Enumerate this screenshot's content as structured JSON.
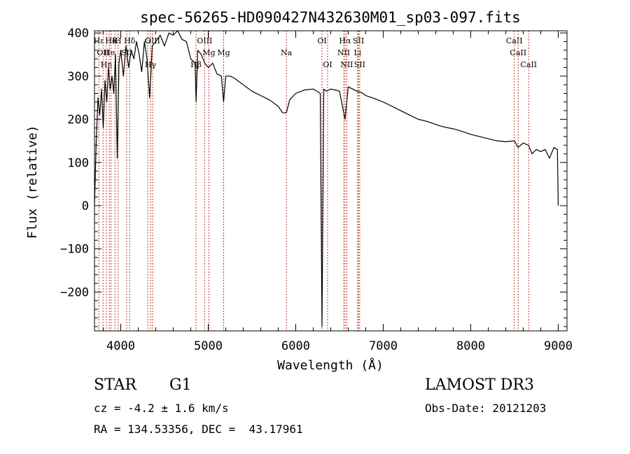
{
  "chart_data": {
    "type": "line",
    "title": "spec-56265-HD090427N432630M01_sp03-097.fits",
    "xlabel": "Wavelength (Å)",
    "ylabel": "Flux (relative)",
    "xlim": [
      3700,
      9100
    ],
    "ylim": [
      -290,
      405
    ],
    "x_ticks": [
      4000,
      5000,
      6000,
      7000,
      8000,
      9000
    ],
    "x_tick_labels": [
      "4000",
      "5000",
      "6000",
      "7000",
      "8000",
      "9000"
    ],
    "y_ticks": [
      -200,
      -100,
      0,
      100,
      200,
      300,
      400
    ],
    "y_tick_labels": [
      "−200",
      "−100",
      "0",
      "100",
      "200",
      "300",
      "400"
    ],
    "grid": false,
    "series": [
      {
        "x": [
          3700,
          3720,
          3740,
          3760,
          3780,
          3800,
          3820,
          3840,
          3860,
          3880,
          3900,
          3920,
          3940,
          3960,
          3980,
          4000,
          4030,
          4060,
          4090,
          4120,
          4150,
          4180,
          4210,
          4240,
          4270,
          4300,
          4330,
          4360,
          4400,
          4450,
          4500,
          4550,
          4600,
          4650,
          4700,
          4750,
          4800,
          4850,
          4861,
          4880,
          4920,
          4960,
          5000,
          5050,
          5100,
          5150,
          5175,
          5200,
          5250,
          5300,
          5400,
          5500,
          5600,
          5700,
          5800,
          5850,
          5893,
          5930,
          6000,
          6100,
          6200,
          6280,
          6300,
          6320,
          6350,
          6400,
          6450,
          6500,
          6563,
          6600,
          6650,
          6700,
          6750,
          6800,
          6900,
          7000,
          7100,
          7200,
          7300,
          7400,
          7500,
          7600,
          7700,
          7800,
          7900,
          8000,
          8100,
          8200,
          8300,
          8400,
          8500,
          8540,
          8600,
          8660,
          8700,
          8750,
          8800,
          8850,
          8900,
          8950,
          8990,
          9000
        ],
        "values": [
          0,
          150,
          250,
          210,
          270,
          180,
          290,
          240,
          320,
          270,
          300,
          260,
          350,
          110,
          330,
          360,
          300,
          370,
          320,
          360,
          340,
          380,
          350,
          310,
          380,
          340,
          250,
          370,
          380,
          395,
          370,
          400,
          395,
          410,
          385,
          380,
          340,
          330,
          240,
          360,
          350,
          330,
          320,
          330,
          305,
          300,
          240,
          300,
          300,
          295,
          280,
          265,
          255,
          245,
          230,
          215,
          215,
          245,
          260,
          268,
          270,
          260,
          -280,
          270,
          265,
          270,
          268,
          265,
          200,
          275,
          270,
          265,
          262,
          255,
          248,
          240,
          230,
          220,
          210,
          200,
          195,
          188,
          182,
          178,
          172,
          165,
          160,
          155,
          150,
          148,
          150,
          135,
          145,
          140,
          120,
          130,
          125,
          130,
          110,
          135,
          130,
          0
        ]
      }
    ],
    "line_markers": [
      {
        "wavelength": 3750,
        "label": "Hε",
        "row": 1
      },
      {
        "wavelength": 3798,
        "label": "OII",
        "row": 2
      },
      {
        "wavelength": 3835,
        "label": "Hη",
        "row": 3
      },
      {
        "wavelength": 3869,
        "label": "He",
        "row": 2
      },
      {
        "wavelength": 3889,
        "label": "Hδ",
        "row": 1
      },
      {
        "wavelength": 3934,
        "label": "K",
        "row": 1
      },
      {
        "wavelength": 3970,
        "label": "H",
        "row": 1
      },
      {
        "wavelength": 4068,
        "label": "SII",
        "row": 2
      },
      {
        "wavelength": 4102,
        "label": "Hδ",
        "row": 1
      },
      {
        "wavelength": 4308,
        "label": "G",
        "row": 1
      },
      {
        "wavelength": 4340,
        "label": "Hγ",
        "row": 3
      },
      {
        "wavelength": 4363,
        "label": "OIII",
        "row": 1
      },
      {
        "wavelength": 4861,
        "label": "Hβ",
        "row": 3
      },
      {
        "wavelength": 4959,
        "label": "OIII",
        "row": 1
      },
      {
        "wavelength": 5007,
        "label": "Mg",
        "row": 2
      },
      {
        "wavelength": 5176,
        "label": "Mg",
        "row": 2
      },
      {
        "wavelength": 5893,
        "label": "Na",
        "row": 2
      },
      {
        "wavelength": 6300,
        "label": "OI",
        "row": 1
      },
      {
        "wavelength": 6364,
        "label": "OI",
        "row": 3
      },
      {
        "wavelength": 6548,
        "label": "NII",
        "row": 2
      },
      {
        "wavelength": 6563,
        "label": "Hα",
        "row": 1
      },
      {
        "wavelength": 6583,
        "label": "NII",
        "row": 3
      },
      {
        "wavelength": 6707,
        "label": "Li",
        "row": 2
      },
      {
        "wavelength": 6717,
        "label": "SII",
        "row": 1
      },
      {
        "wavelength": 6731,
        "label": "SII",
        "row": 3
      },
      {
        "wavelength": 8498,
        "label": "CaII",
        "row": 1
      },
      {
        "wavelength": 8542,
        "label": "CaII",
        "row": 2
      },
      {
        "wavelength": 8662,
        "label": "CaII",
        "row": 3
      }
    ]
  },
  "info": {
    "class": "STAR",
    "subclass": "G1",
    "survey": "LAMOST DR3",
    "cz": "cz = -4.2 ± 1.6 km/s",
    "obs_date": "Obs-Date: 20121203",
    "coords": "RA = 134.53356, DEC =  43.17961"
  },
  "colors": {
    "line": "#000000",
    "marker": "#c0392b",
    "axis": "#000000"
  }
}
